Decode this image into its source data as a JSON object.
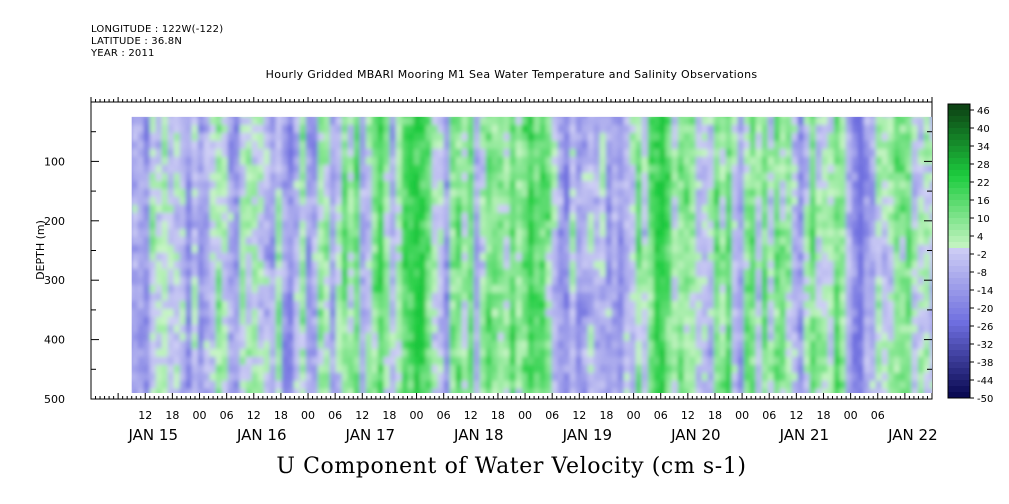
{
  "header": {
    "longitude": "LONGITUDE : 122W(-122)",
    "latitude": "LATITUDE : 36.8N",
    "year": "YEAR : 2011"
  },
  "chart_data": {
    "type": "heatmap",
    "title": "Hourly Gridded MBARI Mooring M1 Sea Water Temperature and Salinity Observations",
    "xlabel": "U Component of Water Velocity (cm s-1)",
    "ylabel": "DEPTH (m)",
    "y_reversed": true,
    "ylim": [
      0,
      500
    ],
    "y_ticks": [
      100,
      200,
      300,
      400,
      500
    ],
    "x_axis_hours_range": [
      0,
      186
    ],
    "x_hour_ticks": [
      "12",
      "18",
      "00",
      "06",
      "12",
      "18",
      "00",
      "06",
      "12",
      "18",
      "00",
      "06",
      "12",
      "18",
      "00",
      "06",
      "12",
      "18",
      "00",
      "06",
      "12",
      "18",
      "00",
      "06",
      "12",
      "18",
      "00",
      "06"
    ],
    "x_date_labels": [
      {
        "label": "JAN 15",
        "hour": 12
      },
      {
        "label": "JAN 16",
        "hour": 36
      },
      {
        "label": "JAN 17",
        "hour": 60
      },
      {
        "label": "JAN 18",
        "hour": 84
      },
      {
        "label": "JAN 19",
        "hour": 108
      },
      {
        "label": "JAN 20",
        "hour": 132
      },
      {
        "label": "JAN 21",
        "hour": 156
      },
      {
        "label": "JAN 22",
        "hour": 180
      }
    ],
    "data_extent": {
      "time_start_hour": 9,
      "time_end_hour": 186,
      "depth_top": 25,
      "depth_bottom": 490
    },
    "colorbar": {
      "levels": [
        48,
        46,
        44,
        42,
        40,
        38,
        36,
        34,
        32,
        30,
        28,
        26,
        24,
        22,
        20,
        18,
        16,
        14,
        12,
        10,
        8,
        6,
        4,
        2,
        0,
        -2,
        -4,
        -6,
        -8,
        -10,
        -12,
        -14,
        -16,
        -18,
        -20,
        -22,
        -24,
        -26,
        -28,
        -30,
        -32,
        -34,
        -36,
        -38,
        -40,
        -42,
        -44,
        -46,
        -48,
        -50
      ],
      "labels": [
        "46",
        "40",
        "34",
        "28",
        "22",
        "16",
        "10",
        "4",
        "-2",
        "-8",
        "-14",
        "-20",
        "-26",
        "-32",
        "-38",
        "-44",
        "-50"
      ],
      "label_levels": [
        46,
        40,
        34,
        28,
        22,
        16,
        10,
        4,
        -2,
        -8,
        -14,
        -20,
        -26,
        -32,
        -38,
        -44,
        -50
      ],
      "colors": {
        "pos_max": "#0c3d12",
        "pos_mid": "#1dcc3e",
        "pos_min": "#c7f5c4",
        "neg_min": "#cfcff5",
        "neg_mid": "#6e6edf",
        "neg_max": "#06064d"
      }
    },
    "value_range_observed": [
      -25,
      25
    ],
    "grid": false
  }
}
